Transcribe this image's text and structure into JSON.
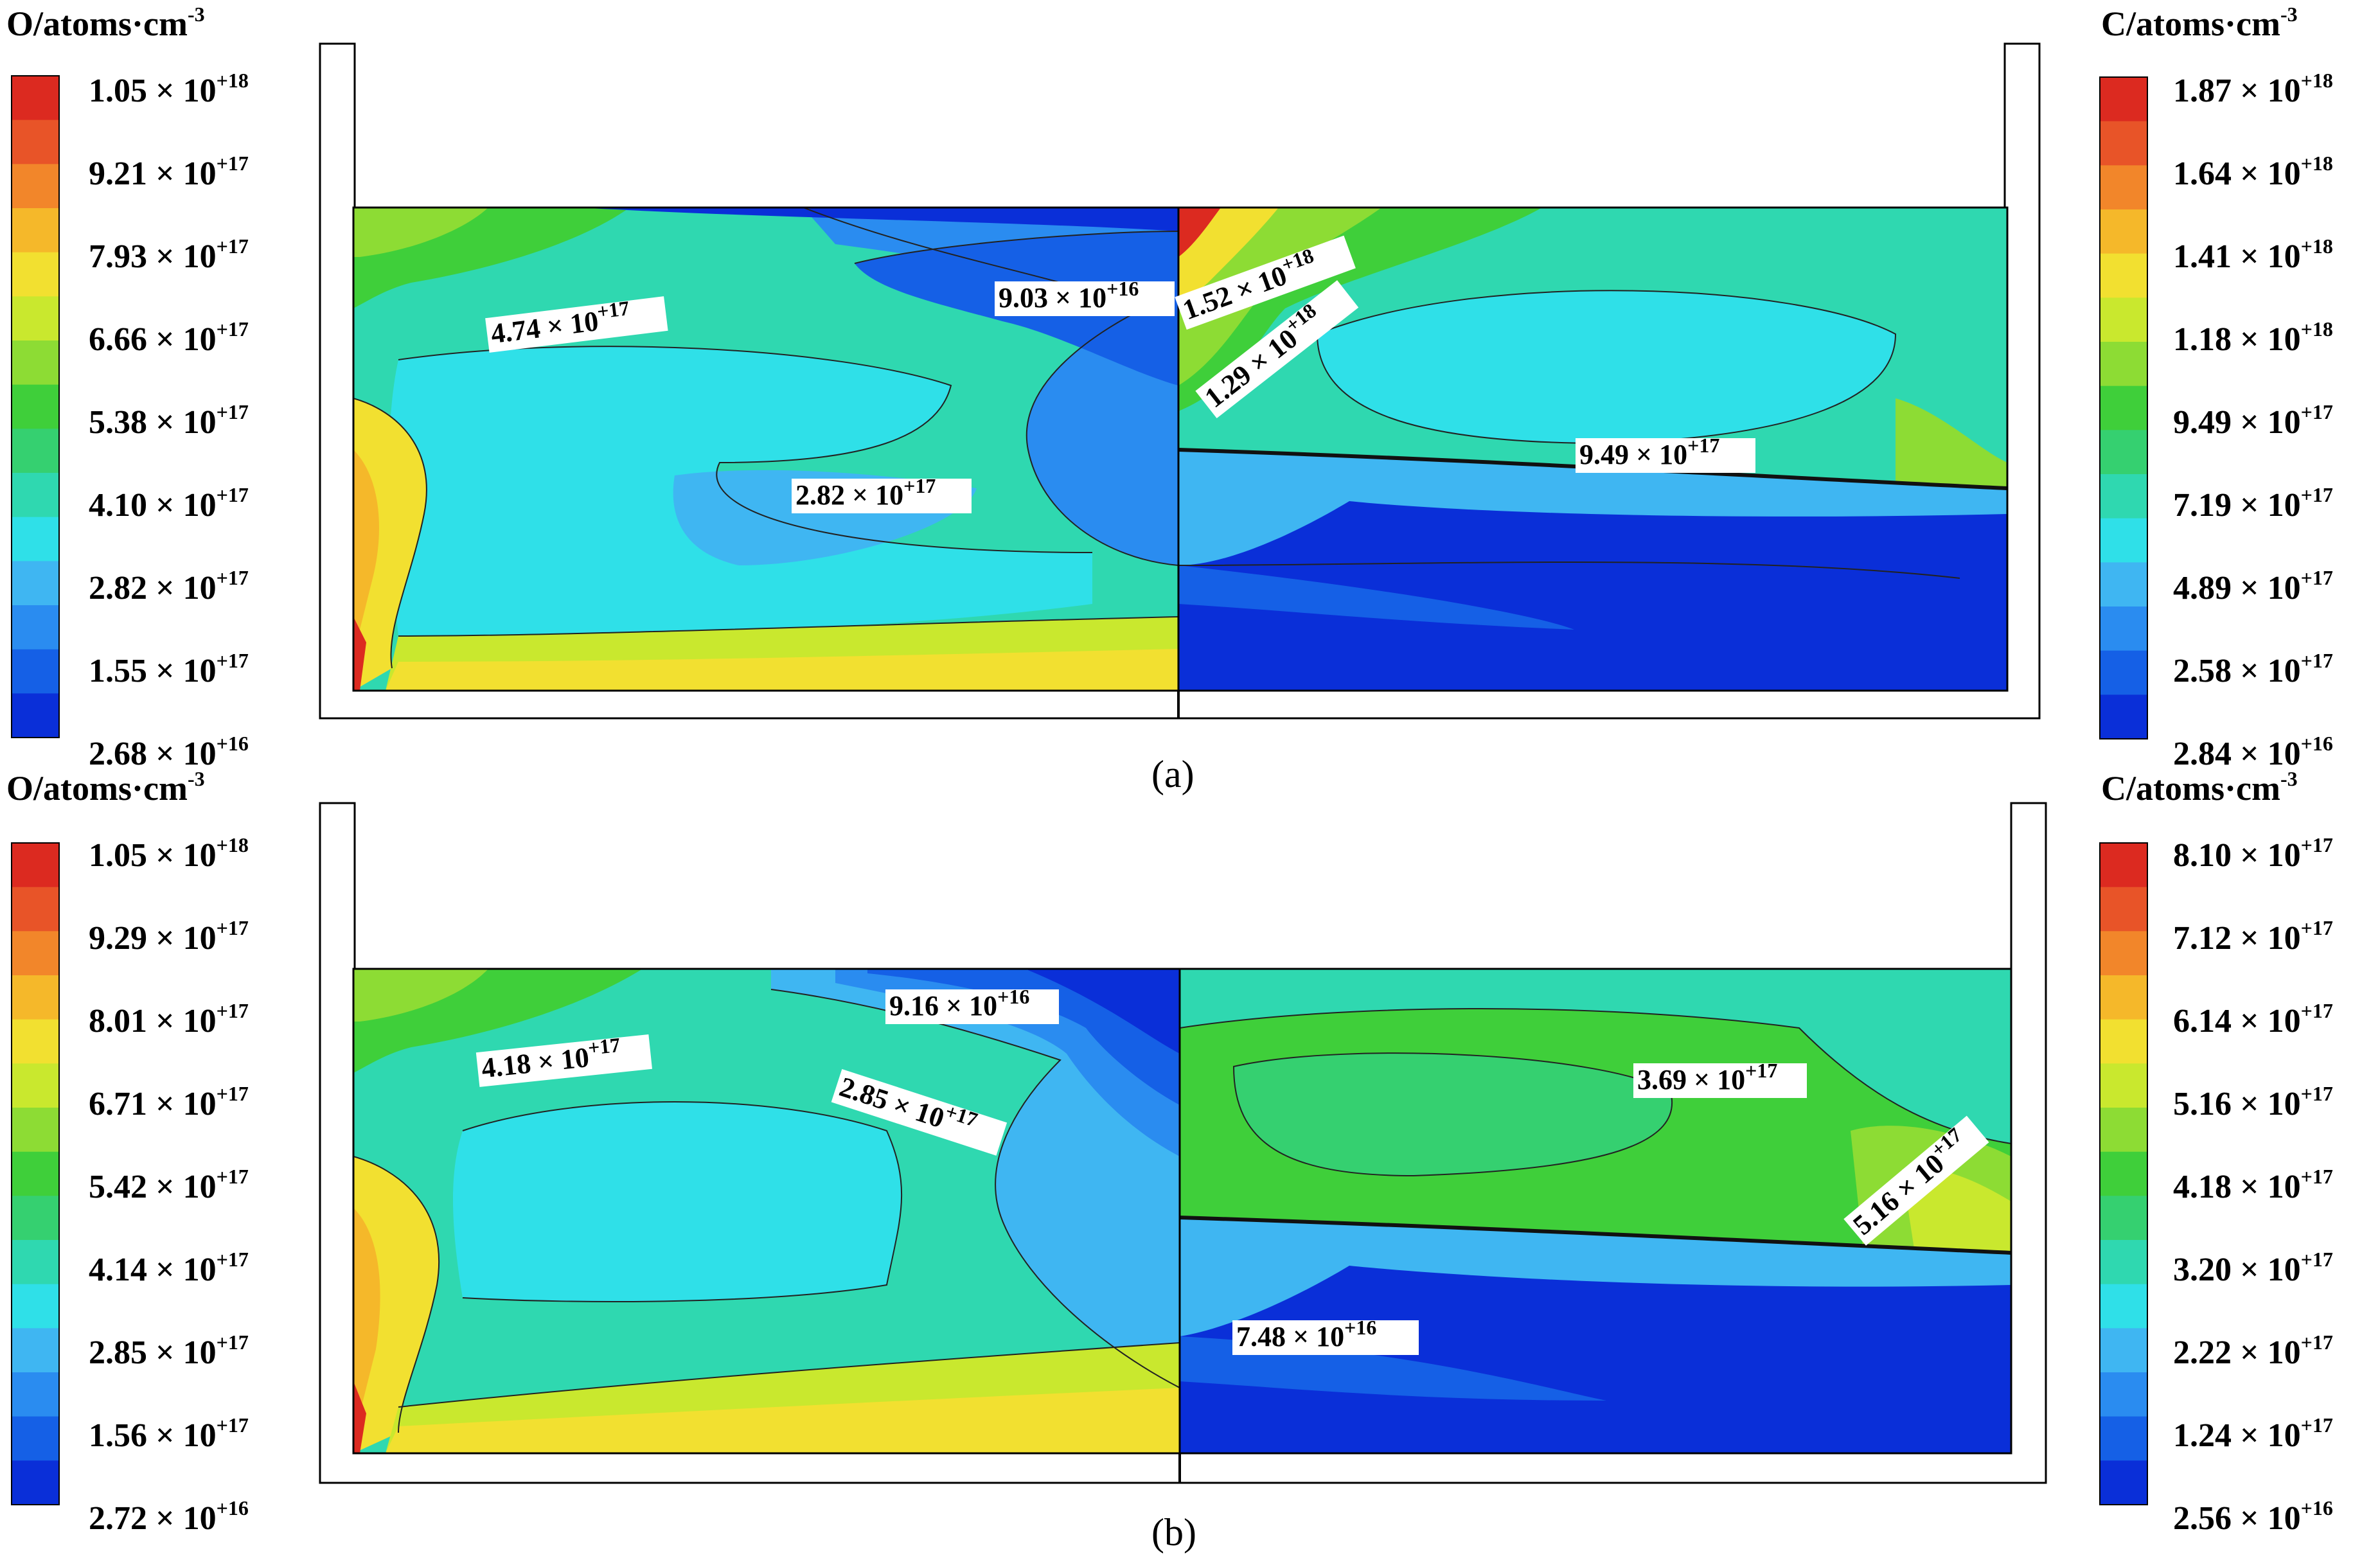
{
  "colormap": [
    "#0a2fd8",
    "#1560e6",
    "#2a8cf0",
    "#3fb6f2",
    "#2fe0e8",
    "#2fd8b0",
    "#35d070",
    "#3fcf3a",
    "#8ddc34",
    "#c9e82e",
    "#f2e030",
    "#f5b82a",
    "#f2862a",
    "#e85428",
    "#dc2a20"
  ],
  "panels": [
    {
      "id": "a",
      "caption": "(a)",
      "left_title": "O/atoms·cm",
      "left_title_sup": "-3",
      "right_title": "C/atoms·cm",
      "right_title_sup": "-3",
      "left_ticks": [
        {
          "m": "1.05 × 10",
          "e": "+18"
        },
        {
          "m": "9.21 × 10",
          "e": "+17"
        },
        {
          "m": "7.93 × 10",
          "e": "+17"
        },
        {
          "m": "6.66 × 10",
          "e": "+17"
        },
        {
          "m": "5.38 × 10",
          "e": "+17"
        },
        {
          "m": "4.10 × 10",
          "e": "+17"
        },
        {
          "m": "2.82 × 10",
          "e": "+17"
        },
        {
          "m": "1.55 × 10",
          "e": "+17"
        },
        {
          "m": "2.68 × 10",
          "e": "+16"
        }
      ],
      "right_ticks": [
        {
          "m": "1.87 × 10",
          "e": "+18"
        },
        {
          "m": "1.64 × 10",
          "e": "+18"
        },
        {
          "m": "1.41 × 10",
          "e": "+18"
        },
        {
          "m": "1.18 × 10",
          "e": "+18"
        },
        {
          "m": "9.49 × 10",
          "e": "+17"
        },
        {
          "m": "7.19 × 10",
          "e": "+17"
        },
        {
          "m": "4.89 × 10",
          "e": "+17"
        },
        {
          "m": "2.58 × 10",
          "e": "+17"
        },
        {
          "m": "2.84 × 10",
          "e": "+16"
        }
      ],
      "annotations": [
        {
          "m": "4.74 × 10",
          "e": "+17"
        },
        {
          "m": "9.03 × 10",
          "e": "+16"
        },
        {
          "m": "2.82 × 10",
          "e": "+17"
        },
        {
          "m": "1.52 × 10",
          "e": "+18"
        },
        {
          "m": "1.29 × 10",
          "e": "+18"
        },
        {
          "m": "9.49 × 10",
          "e": "+17"
        }
      ]
    },
    {
      "id": "b",
      "caption": "(b)",
      "left_title": "O/atoms·cm",
      "left_title_sup": "-3",
      "right_title": "C/atoms·cm",
      "right_title_sup": "-3",
      "left_ticks": [
        {
          "m": "1.05 × 10",
          "e": "+18"
        },
        {
          "m": "9.29 × 10",
          "e": "+17"
        },
        {
          "m": "8.01 × 10",
          "e": "+17"
        },
        {
          "m": "6.71 × 10",
          "e": "+17"
        },
        {
          "m": "5.42 × 10",
          "e": "+17"
        },
        {
          "m": "4.14 × 10",
          "e": "+17"
        },
        {
          "m": "2.85 × 10",
          "e": "+17"
        },
        {
          "m": "1.56 × 10",
          "e": "+17"
        },
        {
          "m": "2.72 × 10",
          "e": "+16"
        }
      ],
      "right_ticks": [
        {
          "m": "8.10 × 10",
          "e": "+17"
        },
        {
          "m": "7.12 × 10",
          "e": "+17"
        },
        {
          "m": "6.14 × 10",
          "e": "+17"
        },
        {
          "m": "5.16 × 10",
          "e": "+17"
        },
        {
          "m": "4.18 × 10",
          "e": "+17"
        },
        {
          "m": "3.20 × 10",
          "e": "+17"
        },
        {
          "m": "2.22 × 10",
          "e": "+17"
        },
        {
          "m": "1.24 × 10",
          "e": "+17"
        },
        {
          "m": "2.56 × 10",
          "e": "+16"
        }
      ],
      "annotations": [
        {
          "m": "4.18 × 10",
          "e": "+17"
        },
        {
          "m": "9.16 × 10",
          "e": "+16"
        },
        {
          "m": "2.85 × 10",
          "e": "+17"
        },
        {
          "m": "3.69 × 10",
          "e": "+17"
        },
        {
          "m": "5.16 × 10",
          "e": "+17"
        },
        {
          "m": "7.48 × 10",
          "e": "+16"
        }
      ]
    }
  ]
}
